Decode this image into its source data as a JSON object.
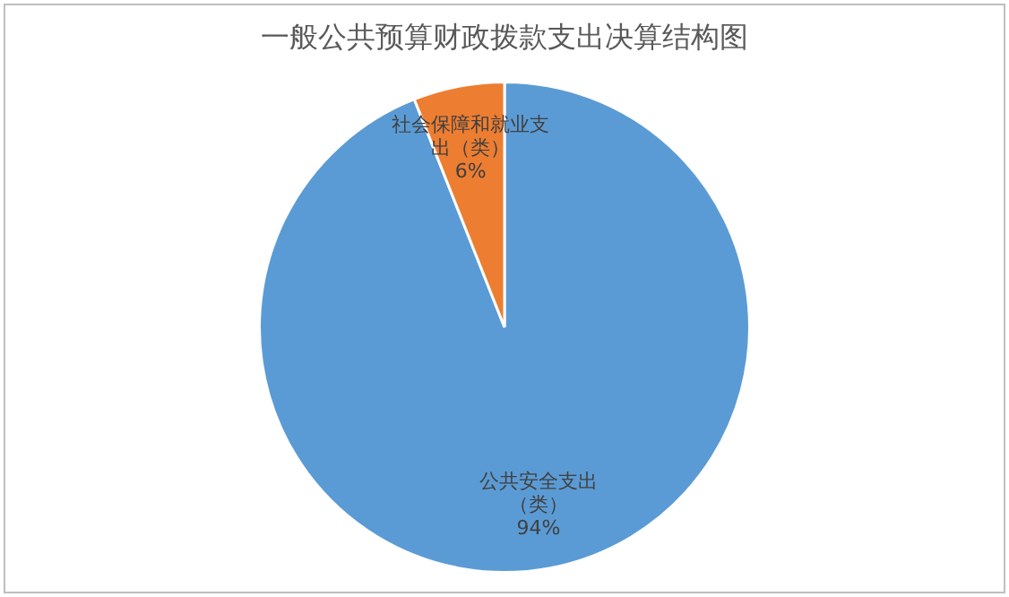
{
  "chart_data": {
    "type": "pie",
    "title": "一般公共预算财政拨款支出决算结构图",
    "categories": [
      "公共安全支出（类）",
      "社会保障和就业支出（类）"
    ],
    "values": [
      94,
      6
    ],
    "colors": [
      "#5b9bd5",
      "#ed7d31"
    ],
    "value_labels": [
      "94%",
      "6%"
    ],
    "legend": false
  }
}
